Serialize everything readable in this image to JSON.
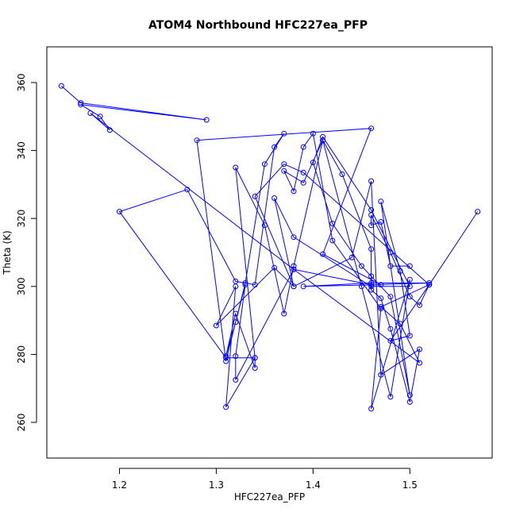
{
  "chart_data": {
    "type": "line",
    "title": "ATOM4 Northbound HFC227ea_PFP",
    "xlabel": "HFC227ea_PFP",
    "ylabel": "Theta (K)",
    "xlim": [
      1.125,
      1.585
    ],
    "ylim": [
      249.5,
      370.5
    ],
    "xticks": [
      1.2,
      1.3,
      1.4,
      1.5
    ],
    "yticks": [
      260,
      280,
      300,
      320,
      340,
      360
    ],
    "grid": false,
    "color": "#0000ff",
    "series": [
      {
        "x": [
          1.14,
          1.16,
          1.29,
          1.16,
          1.18,
          1.19,
          1.17,
          1.38,
          1.46,
          1.52,
          1.46,
          1.39,
          1.47,
          1.41,
          1.46,
          1.28,
          1.31,
          1.33,
          1.35,
          1.37,
          1.36,
          1.34,
          1.32,
          1.27,
          1.2,
          1.31,
          1.34,
          1.32,
          1.35,
          1.37,
          1.38,
          1.41,
          1.45,
          1.48,
          1.5,
          1.46,
          1.47,
          1.42,
          1.4,
          1.39,
          1.38,
          1.37,
          1.39,
          1.41,
          1.43,
          1.46,
          1.46,
          1.47,
          1.48,
          1.5,
          1.51,
          1.47,
          1.46,
          1.44,
          1.38,
          1.36,
          1.38,
          1.46,
          1.5,
          1.46,
          1.41,
          1.4,
          1.42,
          1.45,
          1.46,
          1.48,
          1.5,
          1.47,
          1.49,
          1.5,
          1.48,
          1.52,
          1.47,
          1.49,
          1.51,
          1.38,
          1.32,
          1.32,
          1.33,
          1.32,
          1.31,
          1.32,
          1.34,
          1.34,
          1.31,
          1.32,
          1.3,
          1.36,
          1.38,
          1.34,
          1.37,
          1.39,
          1.52,
          1.57,
          1.52,
          1.51,
          1.5,
          1.48,
          1.46,
          1.46,
          1.47,
          1.48,
          1.5
        ],
        "y": [
          359,
          354,
          349,
          353.5,
          350,
          346,
          351,
          305,
          300.5,
          301,
          301,
          300,
          300.5,
          309.5,
          346.5,
          343,
          278,
          301,
          336,
          345,
          341,
          300.5,
          301.5,
          328.5,
          322,
          279,
          279,
          335,
          318,
          292,
          306,
          343,
          300,
          267.5,
          302,
          264,
          293.5,
          313.5,
          345,
          341,
          328,
          334,
          330.5,
          343,
          333,
          311,
          299,
          296.5,
          287.5,
          266,
          281.5,
          274,
          331,
          308.5,
          300,
          326,
          314.5,
          300,
          300,
          322.5,
          344,
          336.5,
          318.5,
          306,
          303,
          297,
          268,
          325,
          304.5,
          285.5,
          284,
          300.5,
          294,
          289,
          277.5,
          305,
          272.5,
          279.5,
          300.5,
          289.5,
          279.5,
          292,
          276,
          279,
          264.5,
          300,
          288.5,
          305.5,
          300,
          326.5,
          336,
          333.5,
          300.5,
          322,
          300.5,
          294.5,
          297,
          310,
          321,
          318,
          319,
          306,
          306
        ]
      }
    ]
  }
}
